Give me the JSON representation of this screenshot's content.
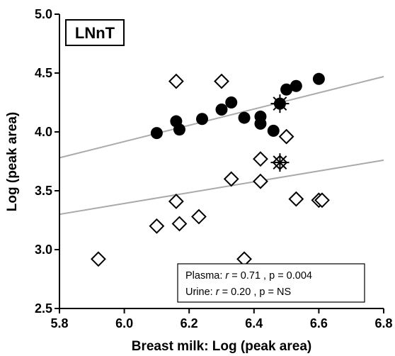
{
  "chart_data": {
    "type": "scatter",
    "panel_label": "LNnT",
    "xlabel": "Breast milk: Log (peak area)",
    "ylabel": "Log (peak area)",
    "xlim": [
      5.8,
      6.8
    ],
    "ylim": [
      2.5,
      5.0
    ],
    "x_ticks": [
      "5.8",
      "6.0",
      "6.2",
      "6.4",
      "6.6",
      "6.8"
    ],
    "y_ticks": [
      "2.5",
      "3.0",
      "3.5",
      "4.0",
      "4.5",
      "5.0"
    ],
    "grid": false,
    "series": [
      {
        "name": "Plasma",
        "marker": "filled-circle",
        "points": [
          [
            6.1,
            3.99
          ],
          [
            6.16,
            4.09
          ],
          [
            6.17,
            4.02
          ],
          [
            6.24,
            4.11
          ],
          [
            6.3,
            4.19
          ],
          [
            6.33,
            4.25
          ],
          [
            6.37,
            4.12
          ],
          [
            6.42,
            4.13
          ],
          [
            6.42,
            4.07
          ],
          [
            6.46,
            4.01
          ],
          [
            6.48,
            4.24
          ],
          [
            6.5,
            4.36
          ],
          [
            6.53,
            4.39
          ],
          [
            6.6,
            4.45
          ]
        ],
        "starred_point": [
          6.48,
          4.24
        ],
        "fit": {
          "x0": 5.8,
          "y0": 3.78,
          "x1": 6.8,
          "y1": 4.47
        },
        "stats": {
          "label": "Plasma:",
          "r_symbol": "r",
          "r_text": " = 0.71 , p = 0.004"
        }
      },
      {
        "name": "Urine",
        "marker": "open-diamond",
        "points": [
          [
            5.92,
            2.92
          ],
          [
            6.1,
            3.2
          ],
          [
            6.16,
            3.41
          ],
          [
            6.17,
            3.22
          ],
          [
            6.23,
            3.28
          ],
          [
            6.16,
            4.43
          ],
          [
            6.3,
            4.43
          ],
          [
            6.33,
            3.6
          ],
          [
            6.37,
            2.92
          ],
          [
            6.42,
            3.77
          ],
          [
            6.42,
            3.58
          ],
          [
            6.48,
            3.74
          ],
          [
            6.5,
            3.96
          ],
          [
            6.53,
            3.43
          ],
          [
            6.6,
            3.42
          ],
          [
            6.61,
            3.42
          ]
        ],
        "starred_point": [
          6.48,
          3.74
        ],
        "fit": {
          "x0": 5.8,
          "y0": 3.3,
          "x1": 6.8,
          "y1": 3.76
        },
        "stats": {
          "label": "Urine:",
          "r_symbol": "r",
          "r_text": " = 0.20 , p = NS"
        }
      }
    ],
    "colors": {
      "axis": "#000000",
      "fit_line": "#aaaaaa",
      "marker": "#000000",
      "marker_fill_open": "#ffffff"
    }
  }
}
